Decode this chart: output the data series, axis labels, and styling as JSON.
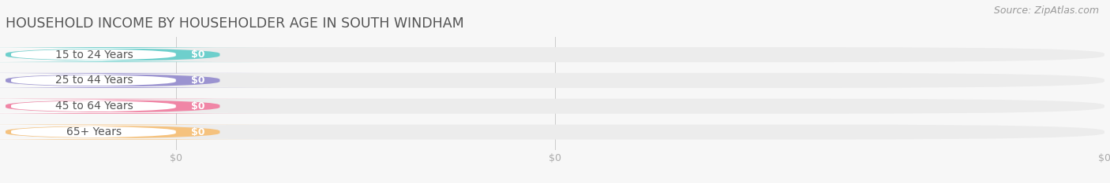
{
  "title": "HOUSEHOLD INCOME BY HOUSEHOLDER AGE IN SOUTH WINDHAM",
  "source": "Source: ZipAtlas.com",
  "categories": [
    "15 to 24 Years",
    "25 to 44 Years",
    "45 to 64 Years",
    "65+ Years"
  ],
  "values": [
    0,
    0,
    0,
    0
  ],
  "bar_colors": [
    "#6ecfcc",
    "#9b93d0",
    "#f086a6",
    "#f5c27e"
  ],
  "label_bg_colors": [
    "#eaf7f6",
    "#eeeaf8",
    "#fce8ef",
    "#fdf3e3"
  ],
  "background_color": "#f7f7f7",
  "bar_bg_color": "#ececec",
  "title_color": "#555555",
  "source_color": "#999999",
  "tick_label_color": "#aaaaaa",
  "value_label_color": "#ffffff",
  "category_label_color": "#555555",
  "bar_height": 0.58,
  "title_fontsize": 12.5,
  "source_fontsize": 9,
  "tick_fontsize": 9,
  "category_fontsize": 10,
  "value_fontsize": 9
}
